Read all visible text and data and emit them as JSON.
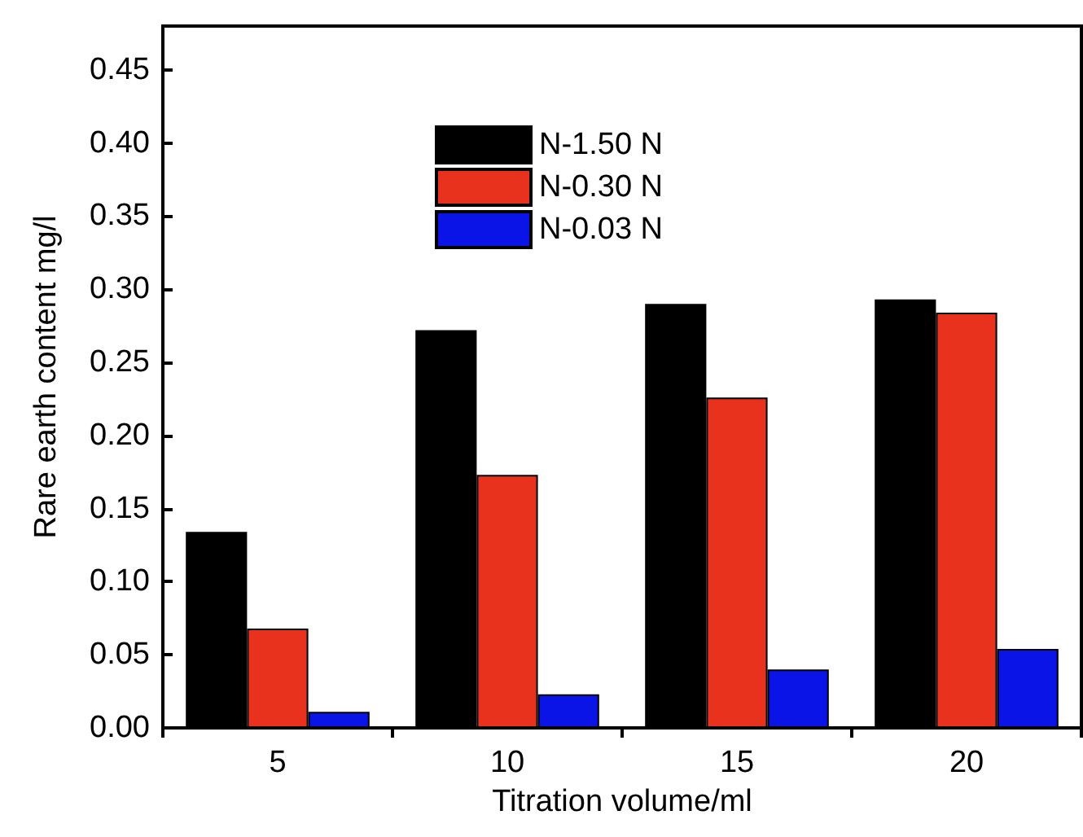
{
  "chart_data": {
    "type": "bar",
    "xlabel": "Titration volume/ml",
    "ylabel": "Rare earth content mg/l",
    "categories": [
      "5",
      "10",
      "15",
      "20"
    ],
    "series": [
      {
        "name": "N-1.50 N",
        "color": "#000000",
        "values": [
          0.134,
          0.272,
          0.29,
          0.293
        ]
      },
      {
        "name": "N-0.30 N",
        "color": "#e8321e",
        "values": [
          0.068,
          0.173,
          0.226,
          0.284
        ]
      },
      {
        "name": "N-0.03 N",
        "color": "#0a14e6",
        "values": [
          0.011,
          0.023,
          0.04,
          0.054
        ]
      }
    ],
    "ylim": [
      0,
      0.48
    ],
    "yticks": [
      {
        "value": 0,
        "label": "0.00"
      },
      {
        "value": 0.05,
        "label": "0.05"
      },
      {
        "value": 0.1,
        "label": "0.10"
      },
      {
        "value": 0.15,
        "label": "0.15"
      },
      {
        "value": 0.2,
        "label": "0.20"
      },
      {
        "value": 0.25,
        "label": "0.25"
      },
      {
        "value": 0.3,
        "label": "0.30"
      },
      {
        "value": 0.35,
        "label": "0.35"
      },
      {
        "value": 0.4,
        "label": "0.40"
      },
      {
        "value": 0.45,
        "label": "0.45"
      }
    ],
    "grid": false,
    "legend": "top"
  }
}
